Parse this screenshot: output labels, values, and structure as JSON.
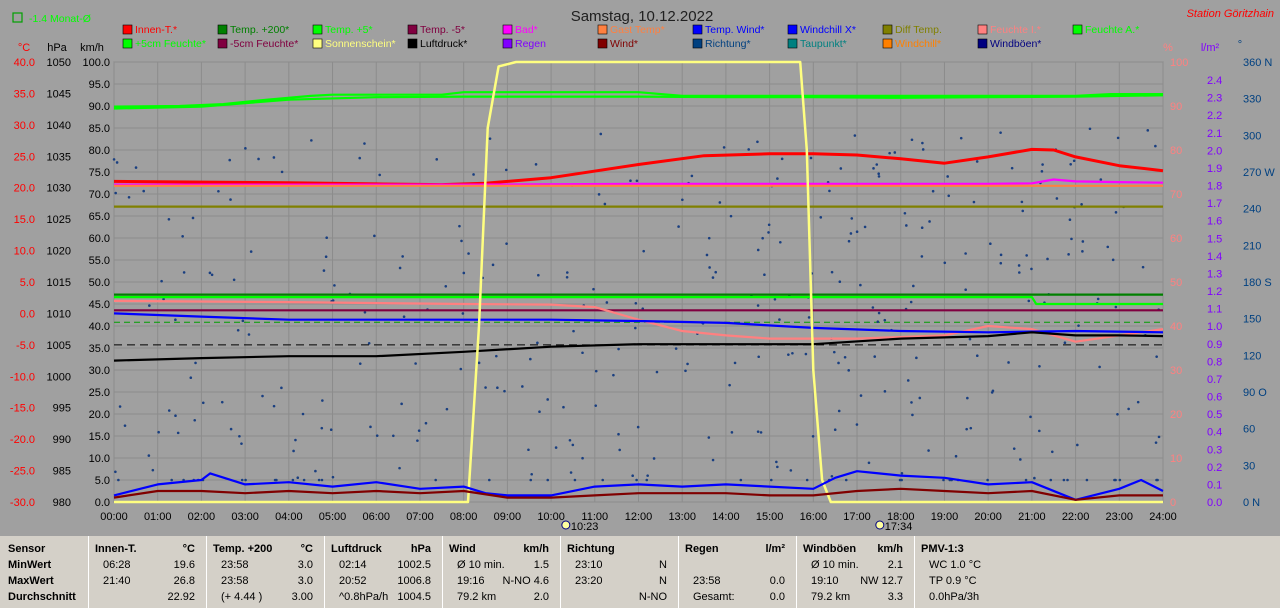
{
  "header": {
    "date": "Samstag, 10.12.2022",
    "station": "Station Göritzhain",
    "month_badge": "-1.4 Monat-Ø"
  },
  "axis_units": {
    "temp": "°C",
    "pressure": "hPa",
    "speed": "km/h",
    "percent": "%",
    "rain": "l/m²",
    "direction": "°"
  },
  "legend": [
    {
      "label": "Innen-T.*",
      "color": "#ff0000"
    },
    {
      "label": "Temp. +200*",
      "color": "#008000"
    },
    {
      "label": "Temp. +5*",
      "color": "#00ff00"
    },
    {
      "label": "Temp. -5*",
      "color": "#800040"
    },
    {
      "label": "Bad*",
      "color": "#ff00ff"
    },
    {
      "label": "Gast Temp*",
      "color": "#ff8040"
    },
    {
      "label": "Temp. Wind*",
      "color": "#0000ff"
    },
    {
      "label": "Windchill X*",
      "color": "#0000ff"
    },
    {
      "label": "Diff Temp.",
      "color": "#808000"
    },
    {
      "label": "Feuchte I.*",
      "color": "#ff8080"
    },
    {
      "label": "Feuchte A.*",
      "color": "#00ff00"
    },
    {
      "label": "+5cm Feuchte*",
      "color": "#00ff00"
    },
    {
      "label": "-5cm Feuchte*",
      "color": "#800040"
    },
    {
      "label": "Sonnenschein*",
      "color": "#ffff80"
    },
    {
      "label": "Luftdruck*",
      "color": "#000000"
    },
    {
      "label": "Regen",
      "color": "#8000ff"
    },
    {
      "label": "Wind*",
      "color": "#800000"
    },
    {
      "label": "Richtung*",
      "color": "#004080"
    },
    {
      "label": "Taupunkt*",
      "color": "#008080"
    },
    {
      "label": "Windchill*",
      "color": "#ff8000"
    },
    {
      "label": "Windböen*",
      "color": "#000080"
    }
  ],
  "chart_data": {
    "type": "line",
    "x_ticks": [
      "00:00",
      "01:00",
      "02:00",
      "03:00",
      "04:00",
      "05:00",
      "06:00",
      "07:00",
      "08:00",
      "09:00",
      "10:00",
      "11:00",
      "12:00",
      "13:00",
      "14:00",
      "15:00",
      "16:00",
      "17:00",
      "18:00",
      "19:00",
      "20:00",
      "21:00",
      "22:00",
      "23:00",
      "24:00"
    ],
    "x_range": [
      0,
      24
    ],
    "sunrise": "10:23",
    "sunset": "17:34",
    "y_temp_ticks": [
      "40.0",
      "35.0",
      "30.0",
      "25.0",
      "20.0",
      "15.0",
      "10.0",
      "5.0",
      "0.0",
      "-5.0",
      "-10.0",
      "-15.0",
      "-20.0",
      "-25.0",
      "-30.0"
    ],
    "y_pressure_ticks": [
      "1050",
      "1045",
      "1040",
      "1035",
      "1030",
      "1025",
      "1020",
      "1015",
      "1010",
      "1005",
      "1000",
      "995",
      "990",
      "985",
      "980"
    ],
    "y_speed_ticks": [
      "100.0",
      "95.0",
      "90.0",
      "85.0",
      "80.0",
      "75.0",
      "70.0",
      "65.0",
      "60.0",
      "55.0",
      "50.0",
      "45.0",
      "40.0",
      "35.0",
      "30.0",
      "25.0",
      "20.0",
      "15.0",
      "10.0",
      "5.0",
      "0.0"
    ],
    "y_percent_ticks": [
      "100",
      "90",
      "80",
      "70",
      "60",
      "50",
      "40",
      "30",
      "20",
      "10",
      "0"
    ],
    "y_rain_ticks": [
      "2.4",
      "2.3",
      "2.2",
      "2.1",
      "2.0",
      "1.9",
      "1.8",
      "1.7",
      "1.6",
      "1.5",
      "1.4",
      "1.3",
      "1.2",
      "1.1",
      "1.0",
      "0.9",
      "0.8",
      "0.7",
      "0.6",
      "0.5",
      "0.4",
      "0.3",
      "0.2",
      "0.1",
      "0.0"
    ],
    "y_direction_ticks": [
      "360 N",
      "330",
      "300",
      "270 W",
      "240",
      "210",
      "180 S",
      "150",
      "120",
      "90 O",
      "60",
      "30",
      "0 N"
    ],
    "temp_range": [
      -30,
      40
    ],
    "speed_range": [
      0,
      100
    ],
    "series": [
      {
        "name": "Innen-T.*",
        "color": "#ff0000",
        "axis": "temp",
        "x": [
          0,
          2,
          4,
          6,
          7.5,
          8.5,
          10,
          12,
          13.5,
          15,
          16,
          17,
          18,
          19,
          20,
          21,
          21.5,
          22,
          23,
          24
        ],
        "y": [
          21.0,
          20.9,
          20.8,
          20.6,
          20.5,
          20.7,
          21.6,
          23.7,
          25.1,
          25.4,
          25.4,
          25.2,
          24.6,
          23.9,
          24.9,
          26.1,
          26.0,
          24.9,
          23.5,
          22.7
        ]
      },
      {
        "name": "Temp. +5*",
        "color": "#00ff00",
        "axis": "temp",
        "x": [
          0,
          1.5,
          2.5,
          3.5,
          4.5,
          5,
          6.5,
          7.5,
          8,
          12,
          13,
          14,
          16,
          18,
          20,
          22,
          22.8,
          24
        ],
        "y": [
          32.9,
          33.0,
          33.3,
          34.0,
          34.6,
          34.8,
          34.8,
          34.8,
          35.2,
          35.2,
          34.6,
          34.6,
          34.6,
          34.6,
          34.6,
          34.6,
          34.9,
          34.9
        ]
      },
      {
        "name": "Feuchte A.*",
        "color": "#00ff00",
        "axis": "temp",
        "x": [
          0,
          2,
          4,
          6,
          8,
          12,
          14,
          16,
          18,
          20,
          22,
          24
        ],
        "y": [
          32.6,
          32.9,
          34.0,
          34.4,
          34.5,
          34.5,
          34.4,
          34.4,
          34.3,
          34.4,
          34.5,
          34.7
        ]
      },
      {
        "name": "Bad*",
        "color": "#ff00ff",
        "axis": "temp",
        "x": [
          0,
          4,
          8,
          12,
          16,
          20,
          21,
          21.5,
          22,
          23,
          24
        ],
        "y": [
          20.5,
          20.5,
          20.5,
          20.6,
          20.6,
          20.6,
          20.7,
          21.3,
          21.0,
          20.9,
          20.8
        ]
      },
      {
        "name": "Gast Temp*",
        "color": "#ff8040",
        "axis": "temp",
        "x": [
          0,
          24
        ],
        "y": [
          20.3,
          20.3
        ]
      },
      {
        "name": "Diff Temp.",
        "color": "#808000",
        "axis": "temp",
        "x": [
          0,
          24
        ],
        "y": [
          17.0,
          17.0
        ]
      },
      {
        "name": "Temp. +200*",
        "color": "#008000",
        "axis": "temp",
        "x": [
          0,
          24
        ],
        "y": [
          3.0,
          3.0
        ]
      },
      {
        "name": "+5cm Feuchte*",
        "color": "#00ff00",
        "axis": "temp",
        "x": [
          0,
          21,
          21.1,
          24
        ],
        "y": [
          2.6,
          2.6,
          1.5,
          1.5
        ]
      },
      {
        "name": "-5cm Feuchte*",
        "color": "#800040",
        "axis": "temp",
        "x": [
          0,
          24
        ],
        "y": [
          0.5,
          0.5
        ]
      },
      {
        "name": "Feuchte I.*",
        "color": "#ff8080",
        "axis": "temp",
        "x": [
          0,
          4,
          8,
          10,
          11,
          12,
          13,
          14,
          15,
          17,
          19,
          20,
          21,
          22,
          23,
          24
        ],
        "y": [
          2.0,
          1.8,
          1.5,
          1.4,
          1.0,
          -1.0,
          -2.8,
          -3.5,
          -4.0,
          -4.0,
          -3.5,
          -2.0,
          -2.5,
          -4.5,
          -3.5,
          -2.5
        ]
      },
      {
        "name": "Temp. Wind*",
        "color": "#0000ff",
        "axis": "temp",
        "x": [
          0,
          2,
          4,
          6,
          8,
          10,
          12,
          14,
          16,
          18,
          20,
          22,
          24
        ],
        "y": [
          0.0,
          -0.5,
          -1.0,
          -1.0,
          -1.0,
          -1.0,
          -1.2,
          -1.5,
          -2.3,
          -2.8,
          -3.0,
          -2.8,
          -3.0
        ]
      },
      {
        "name": "Luftdruck*",
        "color": "#000000",
        "axis": "temp",
        "x": [
          0,
          2,
          4,
          6,
          8,
          10,
          12,
          14,
          16,
          18,
          20,
          21,
          22,
          23,
          24
        ],
        "y": [
          -7.5,
          -7.1,
          -6.8,
          -6.8,
          -6.1,
          -5.3,
          -4.9,
          -4.9,
          -4.9,
          -4.0,
          -3.6,
          -3.0,
          -3.5,
          -3.5,
          -3.6
        ]
      },
      {
        "name": "Sonnenschein*",
        "color": "#ffff80",
        "axis": "speed",
        "x": [
          0,
          8.1,
          8.35,
          8.55,
          8.8,
          9.2,
          12,
          15,
          15.7,
          15.85,
          16,
          16.2,
          16.4,
          24
        ],
        "y": [
          0,
          0,
          40,
          85,
          99,
          100,
          100,
          100,
          100,
          80,
          30,
          5,
          0,
          0
        ]
      },
      {
        "name": "Windböen*",
        "color": "#0000ff",
        "axis": "speed",
        "x": [
          0,
          1,
          2,
          2.2,
          3,
          4,
          5,
          6,
          7,
          8,
          8.5,
          9,
          10,
          11,
          12,
          13,
          14,
          15,
          16,
          16.5,
          17,
          17.5,
          18,
          19,
          20,
          21,
          22,
          23,
          23.5,
          24
        ],
        "y": [
          1.5,
          4.0,
          5.0,
          6.5,
          4.0,
          4.5,
          3.5,
          4.5,
          3.0,
          3.5,
          2.0,
          1.5,
          1.5,
          3.5,
          4.0,
          3.5,
          4.0,
          3.5,
          3.0,
          5.5,
          7.0,
          6.5,
          6.0,
          5.5,
          4.0,
          4.5,
          0.5,
          3.0,
          5.0,
          2.5
        ]
      },
      {
        "name": "Wind*",
        "color": "#800000",
        "axis": "speed",
        "x": [
          0,
          1,
          2,
          3,
          4,
          5,
          6,
          7,
          8,
          9,
          10,
          11,
          12,
          13,
          14,
          15,
          16,
          17,
          18,
          19,
          20,
          21,
          22,
          23,
          24
        ],
        "y": [
          1.0,
          2.5,
          2.5,
          2.0,
          2.5,
          2.0,
          2.5,
          2.0,
          2.5,
          1.0,
          1.0,
          1.5,
          2.0,
          2.0,
          2.0,
          1.5,
          1.5,
          2.5,
          3.0,
          2.5,
          2.0,
          2.5,
          0.5,
          1.5,
          1.5
        ]
      }
    ]
  },
  "table": {
    "rows": [
      "Sensor",
      "MinWert",
      "MaxWert",
      "Durchschnitt"
    ],
    "blocks": [
      {
        "title": "Innen-T.",
        "unit": "°C",
        "lines": [
          [
            "06:28",
            "19.6"
          ],
          [
            "21:40",
            "26.8"
          ],
          [
            "",
            "22.92"
          ]
        ]
      },
      {
        "title": "Temp. +200",
        "unit": "°C",
        "lines": [
          [
            "23:58",
            "3.0"
          ],
          [
            "23:58",
            "3.0"
          ],
          [
            "(+ 4.44 )",
            "3.00"
          ]
        ]
      },
      {
        "title": "Luftdruck",
        "unit": "hPa",
        "lines": [
          [
            "02:14",
            "1002.5"
          ],
          [
            "20:52",
            "1006.8"
          ],
          [
            "^0.8hPa/h",
            "1004.5"
          ]
        ]
      },
      {
        "title": "Wind",
        "unit": "km/h",
        "lines": [
          [
            "Ø 10 min.",
            "1.5"
          ],
          [
            "19:16",
            "N-NO 4.6"
          ],
          [
            "79.2 km",
            "2.0"
          ]
        ]
      },
      {
        "title": "Richtung",
        "unit": "",
        "lines": [
          [
            "23:10",
            "N"
          ],
          [
            "23:20",
            "N"
          ],
          [
            "",
            "N-NO"
          ]
        ]
      },
      {
        "title": "Regen",
        "unit": "l/m²",
        "lines": [
          [
            "",
            ""
          ],
          [
            "23:58",
            "0.0"
          ],
          [
            "Gesamt:",
            "0.0"
          ]
        ]
      },
      {
        "title": "Windböen",
        "unit": "km/h",
        "lines": [
          [
            "Ø 10 min.",
            "2.1"
          ],
          [
            "19:10",
            "NW 12.7"
          ],
          [
            "79.2 km",
            "3.3"
          ]
        ]
      },
      {
        "title": "PMV-1:3",
        "unit": "",
        "lines": [
          [
            "WC 1.0 °C",
            ""
          ],
          [
            "TP 0.9 °C",
            ""
          ],
          [
            "0.0hPa/3h",
            ""
          ]
        ]
      }
    ]
  }
}
